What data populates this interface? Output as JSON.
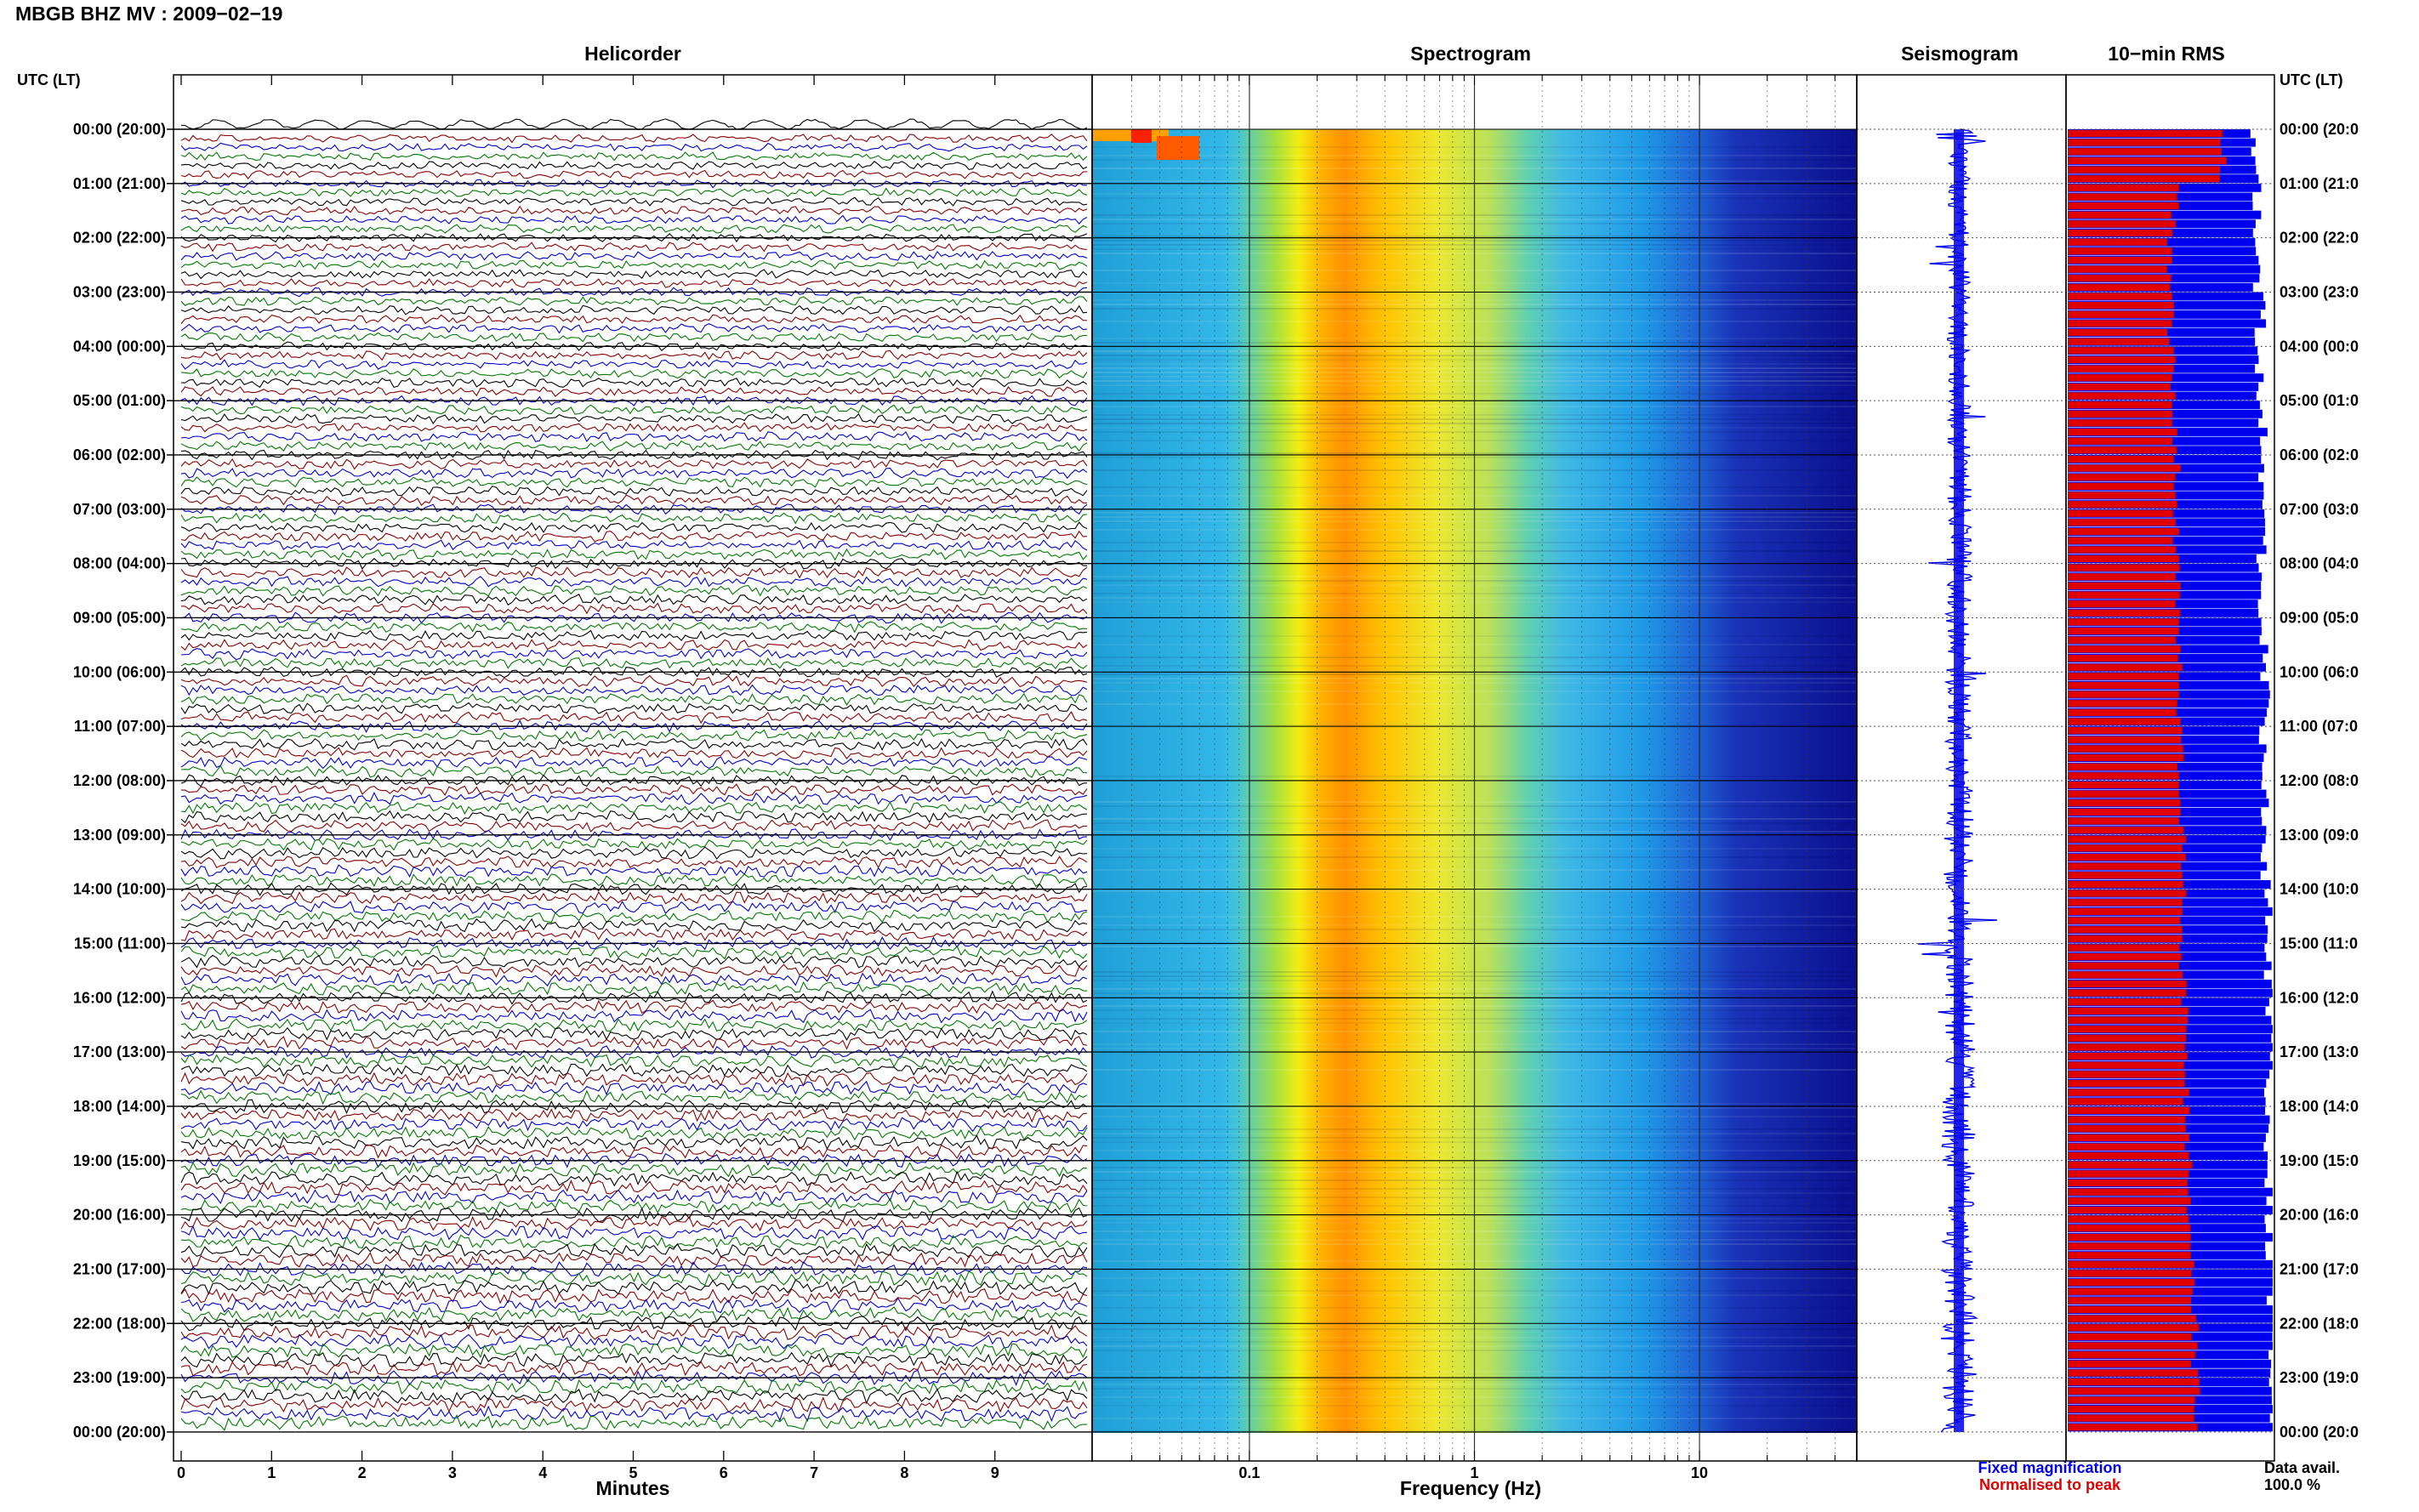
{
  "header": {
    "title": "MBGB BHZ MV : 2009−02−19"
  },
  "colors": {
    "trace_cycle": [
      "#000000",
      "#8b0000",
      "#0000d0",
      "#007a00"
    ],
    "fixed": "#0000ee",
    "normalised": "#e00000",
    "grid": "#000000"
  },
  "chart_data": [
    {
      "type": "line",
      "title": "Helicorder",
      "xlabel": "Minutes",
      "ylabel": "UTC (LT)",
      "xlim": [
        0,
        10
      ],
      "x_ticks": [
        "0",
        "1",
        "2",
        "3",
        "4",
        "5",
        "6",
        "7",
        "8",
        "9"
      ],
      "rows_per_hour": 6,
      "hours": 24,
      "time_labels_left": [
        "00:00 (20:00)",
        "01:00 (21:00)",
        "02:00 (22:00)",
        "03:00 (23:00)",
        "04:00 (00:00)",
        "05:00 (01:00)",
        "06:00 (02:00)",
        "07:00 (03:00)",
        "08:00 (04:00)",
        "09:00 (05:00)",
        "10:00 (06:00)",
        "11:00 (07:00)",
        "12:00 (08:00)",
        "13:00 (09:00)",
        "14:00 (10:00)",
        "15:00 (11:00)",
        "16:00 (12:00)",
        "17:00 (13:00)",
        "18:00 (14:00)",
        "19:00 (15:00)",
        "20:00 (16:00)",
        "21:00 (17:00)",
        "22:00 (18:00)",
        "23:00 (19:00)",
        "00:00 (20:00)"
      ],
      "grid": true
    },
    {
      "type": "heatmap",
      "title": "Spectrogram",
      "xlabel": "Frequency (Hz)",
      "x_scale": "log",
      "xlim": [
        0.02,
        50
      ],
      "x_ticks": [
        "0.1",
        "1",
        "10"
      ],
      "peak_frequency_hz": 0.25,
      "colormap": "jet"
    },
    {
      "type": "line",
      "title": "Seismogram",
      "orientation": "vertical"
    },
    {
      "type": "bar",
      "title": "10−min RMS",
      "orientation": "horizontal",
      "legend": [
        "Fixed magnification",
        "Normalised to peak"
      ],
      "time_labels_right": [
        "00:00 (20:0",
        "01:00 (21:0",
        "02:00 (22:0",
        "03:00 (23:0",
        "04:00 (00:0",
        "05:00 (01:0",
        "06:00 (02:0",
        "07:00 (03:0",
        "08:00 (04:0",
        "09:00 (05:0",
        "10:00 (06:0",
        "11:00 (07:0",
        "12:00 (08:0",
        "13:00 (09:0",
        "14:00 (10:0",
        "15:00 (11:0",
        "16:00 (12:0",
        "17:00 (13:0",
        "18:00 (14:0",
        "19:00 (15:0",
        "20:00 (16:0",
        "21:00 (17:0",
        "22:00 (18:0",
        "23:00 (19:0",
        "00:00 (20:0"
      ],
      "right_axis_label": "UTC (LT)",
      "normalised_fraction_per_hour": [
        0.76,
        0.52,
        0.5,
        0.5,
        0.51,
        0.52,
        0.53,
        0.53,
        0.54,
        0.54,
        0.54,
        0.55,
        0.55,
        0.56,
        0.56,
        0.56,
        0.57,
        0.58,
        0.58,
        0.59,
        0.6,
        0.61,
        0.62,
        0.63
      ],
      "fixed_fraction_per_hour": [
        0.92,
        0.93,
        0.93,
        0.94,
        0.94,
        0.95,
        0.95,
        0.95,
        0.95,
        0.96,
        0.96,
        0.96,
        0.97,
        0.97,
        0.97,
        0.97,
        0.98,
        0.98,
        0.98,
        0.99,
        0.99,
        1.0,
        1.0,
        1.0
      ]
    }
  ],
  "footer": {
    "availability_label": "Data avail.",
    "availability_value": "100.0 %"
  }
}
